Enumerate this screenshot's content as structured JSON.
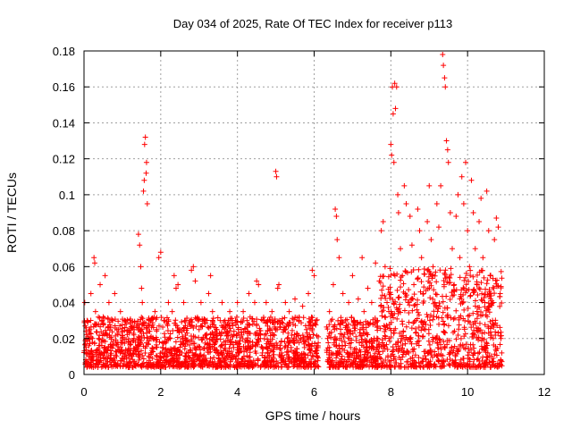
{
  "chart_data": {
    "type": "scatter",
    "title": "Day 034 of 2025, Rate Of TEC Index for receiver p113",
    "xlabel": "GPS time / hours",
    "ylabel": "ROTI / TECUs",
    "xlim": [
      0,
      12
    ],
    "ylim": [
      0,
      0.18
    ],
    "xticks": [
      0,
      2,
      4,
      6,
      8,
      10,
      12
    ],
    "xtick_labels": [
      "0",
      "2",
      "4",
      "6",
      "8",
      "10",
      "12"
    ],
    "yticks": [
      0,
      0.02,
      0.04,
      0.06,
      0.08,
      0.1,
      0.12,
      0.14,
      0.16,
      0.18
    ],
    "ytick_labels": [
      "0",
      "0.02",
      "0.04",
      "0.06",
      "0.08",
      "0.1",
      "0.12",
      "0.14",
      "0.16",
      "0.18"
    ],
    "grid": true,
    "marker": "plus",
    "color": "#ff0000",
    "series": [
      {
        "name": "ROTI",
        "points": [
          [
            0.02,
            0.04
          ],
          [
            0.05,
            0.015
          ],
          [
            0.08,
            0.03
          ],
          [
            0.12,
            0.01
          ],
          [
            0.15,
            0.025
          ],
          [
            0.18,
            0.045
          ],
          [
            0.22,
            0.02
          ],
          [
            0.26,
            0.065
          ],
          [
            0.28,
            0.062
          ],
          [
            0.3,
            0.035
          ],
          [
            0.34,
            0.012
          ],
          [
            0.38,
            0.028
          ],
          [
            0.42,
            0.05
          ],
          [
            0.46,
            0.018
          ],
          [
            0.5,
            0.032
          ],
          [
            0.55,
            0.055
          ],
          [
            0.6,
            0.022
          ],
          [
            0.65,
            0.04
          ],
          [
            0.7,
            0.015
          ],
          [
            0.75,
            0.03
          ],
          [
            0.8,
            0.045
          ],
          [
            0.85,
            0.01
          ],
          [
            0.9,
            0.025
          ],
          [
            0.95,
            0.035
          ],
          [
            1.0,
            0.02
          ],
          [
            1.05,
            0.012
          ],
          [
            1.1,
            0.028
          ],
          [
            1.15,
            0.018
          ],
          [
            1.2,
            0.03
          ],
          [
            1.25,
            0.01
          ],
          [
            1.3,
            0.022
          ],
          [
            1.35,
            0.015
          ],
          [
            1.42,
            0.078
          ],
          [
            1.45,
            0.072
          ],
          [
            1.48,
            0.06
          ],
          [
            1.5,
            0.048
          ],
          [
            1.52,
            0.04
          ],
          [
            1.55,
            0.102
          ],
          [
            1.57,
            0.108
          ],
          [
            1.58,
            0.128
          ],
          [
            1.6,
            0.132
          ],
          [
            1.62,
            0.112
          ],
          [
            1.63,
            0.118
          ],
          [
            1.65,
            0.095
          ],
          [
            1.7,
            0.03
          ],
          [
            1.75,
            0.012
          ],
          [
            1.8,
            0.02
          ],
          [
            1.85,
            0.035
          ],
          [
            1.9,
            0.025
          ],
          [
            1.95,
            0.065
          ],
          [
            2.0,
            0.068
          ],
          [
            2.05,
            0.015
          ],
          [
            2.1,
            0.03
          ],
          [
            2.15,
            0.01
          ],
          [
            2.2,
            0.04
          ],
          [
            2.25,
            0.02
          ],
          [
            2.3,
            0.035
          ],
          [
            2.35,
            0.055
          ],
          [
            2.4,
            0.048
          ],
          [
            2.45,
            0.05
          ],
          [
            2.5,
            0.025
          ],
          [
            2.55,
            0.012
          ],
          [
            2.6,
            0.04
          ],
          [
            2.65,
            0.03
          ],
          [
            2.7,
            0.018
          ],
          [
            2.75,
            0.028
          ],
          [
            2.8,
            0.058
          ],
          [
            2.85,
            0.06
          ],
          [
            2.9,
            0.052
          ],
          [
            2.95,
            0.015
          ],
          [
            3.0,
            0.025
          ],
          [
            3.05,
            0.04
          ],
          [
            3.1,
            0.01
          ],
          [
            3.15,
            0.03
          ],
          [
            3.2,
            0.02
          ],
          [
            3.25,
            0.045
          ],
          [
            3.3,
            0.055
          ],
          [
            3.35,
            0.035
          ],
          [
            3.4,
            0.015
          ],
          [
            3.45,
            0.025
          ],
          [
            3.5,
            0.012
          ],
          [
            3.55,
            0.03
          ],
          [
            3.6,
            0.04
          ],
          [
            3.65,
            0.018
          ],
          [
            3.7,
            0.028
          ],
          [
            3.75,
            0.01
          ],
          [
            3.8,
            0.035
          ],
          [
            3.85,
            0.022
          ],
          [
            3.9,
            0.015
          ],
          [
            3.95,
            0.03
          ],
          [
            4.0,
            0.04
          ],
          [
            4.05,
            0.012
          ],
          [
            4.1,
            0.025
          ],
          [
            4.15,
            0.035
          ],
          [
            4.2,
            0.018
          ],
          [
            4.25,
            0.03
          ],
          [
            4.3,
            0.045
          ],
          [
            4.35,
            0.015
          ],
          [
            4.4,
            0.028
          ],
          [
            4.45,
            0.04
          ],
          [
            4.5,
            0.052
          ],
          [
            4.55,
            0.05
          ],
          [
            4.6,
            0.02
          ],
          [
            4.65,
            0.012
          ],
          [
            4.7,
            0.03
          ],
          [
            4.75,
            0.04
          ],
          [
            4.8,
            0.018
          ],
          [
            4.85,
            0.025
          ],
          [
            4.9,
            0.035
          ],
          [
            4.95,
            0.015
          ],
          [
            5.0,
            0.113
          ],
          [
            5.02,
            0.11
          ],
          [
            5.05,
            0.048
          ],
          [
            5.08,
            0.05
          ],
          [
            5.1,
            0.03
          ],
          [
            5.15,
            0.012
          ],
          [
            5.2,
            0.025
          ],
          [
            5.25,
            0.04
          ],
          [
            5.3,
            0.02
          ],
          [
            5.35,
            0.035
          ],
          [
            5.4,
            0.015
          ],
          [
            5.45,
            0.028
          ],
          [
            5.5,
            0.042
          ],
          [
            5.55,
            0.01
          ],
          [
            5.6,
            0.03
          ],
          [
            5.65,
            0.02
          ],
          [
            5.7,
            0.038
          ],
          [
            5.75,
            0.015
          ],
          [
            5.8,
            0.025
          ],
          [
            5.85,
            0.045
          ],
          [
            5.9,
            0.012
          ],
          [
            5.95,
            0.058
          ],
          [
            6.0,
            0.055
          ],
          [
            6.05,
            0.03
          ],
          [
            6.1,
            0.015
          ],
          [
            6.35,
            0.02
          ],
          [
            6.4,
            0.035
          ],
          [
            6.45,
            0.012
          ],
          [
            6.5,
            0.05
          ],
          [
            6.55,
            0.092
          ],
          [
            6.58,
            0.088
          ],
          [
            6.6,
            0.075
          ],
          [
            6.65,
            0.065
          ],
          [
            6.7,
            0.03
          ],
          [
            6.75,
            0.045
          ],
          [
            6.8,
            0.018
          ],
          [
            6.85,
            0.025
          ],
          [
            6.9,
            0.04
          ],
          [
            6.95,
            0.015
          ],
          [
            7.0,
            0.055
          ],
          [
            7.05,
            0.03
          ],
          [
            7.1,
            0.012
          ],
          [
            7.15,
            0.042
          ],
          [
            7.2,
            0.025
          ],
          [
            7.25,
            0.065
          ],
          [
            7.3,
            0.035
          ],
          [
            7.35,
            0.018
          ],
          [
            7.4,
            0.048
          ],
          [
            7.45,
            0.028
          ],
          [
            7.5,
            0.04
          ],
          [
            7.55,
            0.015
          ],
          [
            7.6,
            0.062
          ],
          [
            7.65,
            0.03
          ],
          [
            7.7,
            0.052
          ],
          [
            7.75,
            0.08
          ],
          [
            7.8,
            0.085
          ],
          [
            7.85,
            0.06
          ],
          [
            7.9,
            0.04
          ],
          [
            7.95,
            0.02
          ],
          [
            8.0,
            0.128
          ],
          [
            8.02,
            0.122
          ],
          [
            8.04,
            0.16
          ],
          [
            8.06,
            0.145
          ],
          [
            8.08,
            0.118
          ],
          [
            8.1,
            0.162
          ],
          [
            8.12,
            0.148
          ],
          [
            8.15,
            0.16
          ],
          [
            8.18,
            0.1
          ],
          [
            8.2,
            0.09
          ],
          [
            8.25,
            0.07
          ],
          [
            8.3,
            0.055
          ],
          [
            8.35,
            0.105
          ],
          [
            8.4,
            0.095
          ],
          [
            8.45,
            0.04
          ],
          [
            8.5,
            0.088
          ],
          [
            8.55,
            0.072
          ],
          [
            8.6,
            0.05
          ],
          [
            8.65,
            0.03
          ],
          [
            8.7,
            0.092
          ],
          [
            8.75,
            0.08
          ],
          [
            8.8,
            0.065
          ],
          [
            8.85,
            0.045
          ],
          [
            8.9,
            0.025
          ],
          [
            8.95,
            0.085
          ],
          [
            9.0,
            0.105
          ],
          [
            9.05,
            0.075
          ],
          [
            9.1,
            0.06
          ],
          [
            9.15,
            0.04
          ],
          [
            9.2,
            0.095
          ],
          [
            9.25,
            0.082
          ],
          [
            9.3,
            0.105
          ],
          [
            9.35,
            0.178
          ],
          [
            9.37,
            0.172
          ],
          [
            9.4,
            0.165
          ],
          [
            9.42,
            0.16
          ],
          [
            9.45,
            0.13
          ],
          [
            9.48,
            0.125
          ],
          [
            9.5,
            0.118
          ],
          [
            9.55,
            0.09
          ],
          [
            9.6,
            0.07
          ],
          [
            9.65,
            0.05
          ],
          [
            9.7,
            0.088
          ],
          [
            9.75,
            0.1
          ],
          [
            9.8,
            0.065
          ],
          [
            9.85,
            0.11
          ],
          [
            9.9,
            0.095
          ],
          [
            9.95,
            0.118
          ],
          [
            10.0,
            0.08
          ],
          [
            10.05,
            0.06
          ],
          [
            10.1,
            0.108
          ],
          [
            10.15,
            0.09
          ],
          [
            10.2,
            0.07
          ],
          [
            10.25,
            0.05
          ],
          [
            10.3,
            0.085
          ],
          [
            10.35,
            0.098
          ],
          [
            10.4,
            0.065
          ],
          [
            10.45,
            0.04
          ],
          [
            10.5,
            0.102
          ],
          [
            10.55,
            0.08
          ],
          [
            10.6,
            0.055
          ],
          [
            10.65,
            0.03
          ],
          [
            10.7,
            0.075
          ],
          [
            10.75,
            0.087
          ],
          [
            10.8,
            0.082
          ],
          [
            10.85,
            0.045
          ],
          [
            10.87,
            0.02
          ],
          [
            10.89,
            0.012
          ]
        ]
      }
    ]
  }
}
